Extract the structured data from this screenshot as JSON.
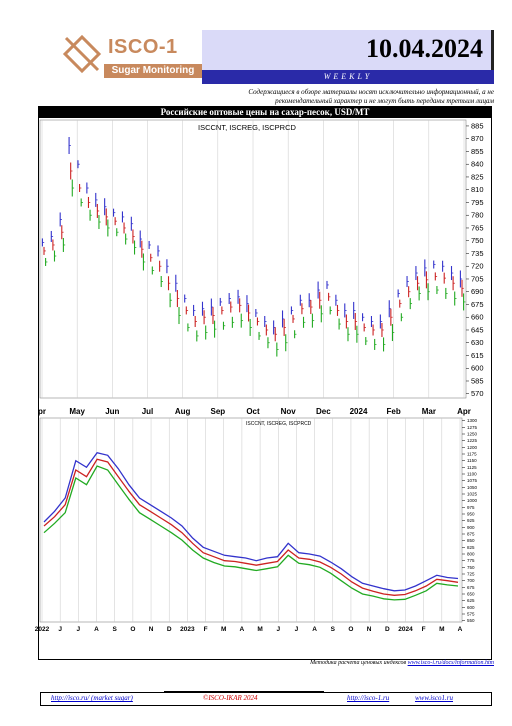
{
  "header": {
    "logo_title": "ISCO-1",
    "logo_subtitle": "Sugar Monitoring",
    "date": "10.04.2024",
    "weekly_label": "WEEKLY",
    "disclaimer": "Содержащиеся в обзоре материалы носят исключительно информационный, а не рекомендательный характер и не могут быть переданы третьим лицам"
  },
  "colors": {
    "date_bg": "#dadaf8",
    "weekly_bg": "#2a2aa8",
    "logo": "#c8895d",
    "cnt": "#3333cc",
    "reg": "#cc2222",
    "prcd": "#22aa22"
  },
  "chart_data": [
    {
      "type": "line",
      "title": "Российские оптовые цены на сахар-песок, USD/MT",
      "legend_text": "ISCCNT, ISCREG, ISCPRCD",
      "x_tick_labels": [
        "pr",
        "May",
        "Jun",
        "Jul",
        "Aug",
        "Sep",
        "Oct",
        "Nov",
        "Dec",
        "2024",
        "Feb",
        "Mar",
        "Apr"
      ],
      "y_tick_labels": [
        "885",
        "870",
        "855",
        "840",
        "825",
        "810",
        "795",
        "780",
        "765",
        "750",
        "735",
        "720",
        "705",
        "690",
        "675",
        "660",
        "645",
        "630",
        "615",
        "600",
        "585",
        "570"
      ],
      "ylim": [
        565,
        892
      ],
      "series": [
        {
          "name": "ISCCNT",
          "values": [
            748,
            755,
            775,
            862,
            840,
            812,
            798,
            790,
            783,
            778,
            770,
            752,
            745,
            738,
            720,
            700,
            682,
            668,
            670,
            672,
            678,
            682,
            684,
            676,
            665,
            655,
            648,
            658,
            668,
            680,
            680,
            692,
            698,
            680,
            668,
            668,
            660,
            655,
            655,
            670,
            688,
            702,
            712,
            718,
            722,
            720,
            712,
            705
          ]
        },
        {
          "name": "ISCREG",
          "values": [
            738,
            745,
            760,
            832,
            812,
            795,
            785,
            778,
            773,
            765,
            755,
            740,
            730,
            720,
            700,
            682,
            668,
            655,
            660,
            662,
            668,
            672,
            674,
            665,
            655,
            645,
            640,
            648,
            658,
            670,
            672,
            680,
            684,
            668,
            655,
            655,
            648,
            645,
            645,
            660,
            676,
            690,
            700,
            704,
            708,
            706,
            700,
            694
          ]
        },
        {
          "name": "ISCPRCD",
          "values": [
            725,
            732,
            745,
            812,
            795,
            780,
            772,
            765,
            760,
            752,
            742,
            725,
            715,
            702,
            680,
            662,
            648,
            638,
            642,
            646,
            650,
            654,
            656,
            648,
            638,
            630,
            622,
            630,
            640,
            654,
            656,
            664,
            668,
            652,
            640,
            640,
            632,
            628,
            628,
            642,
            660,
            676,
            688,
            690,
            692,
            688,
            682,
            678
          ]
        }
      ]
    },
    {
      "type": "line",
      "legend_text": "ISCCNT, ISCREG, ISCPRCD",
      "x_tick_labels": [
        "2022",
        "J",
        "J",
        "A",
        "S",
        "O",
        "N",
        "D",
        "2023",
        "F",
        "M",
        "A",
        "M",
        "J",
        "J",
        "A",
        "S",
        "O",
        "N",
        "D",
        "2024",
        "F",
        "M",
        "A"
      ],
      "y_tick_labels": [
        "1300",
        "1275",
        "1250",
        "1225",
        "1200",
        "1175",
        "1150",
        "1125",
        "1100",
        "1075",
        "1050",
        "1025",
        "1000",
        "975",
        "950",
        "925",
        "900",
        "875",
        "850",
        "825",
        "800",
        "775",
        "750",
        "725",
        "700",
        "675",
        "650",
        "625",
        "600",
        "575",
        "550"
      ],
      "ylim": [
        545,
        1310
      ],
      "series": [
        {
          "name": "ISCCNT",
          "values": [
            920,
            960,
            1010,
            1150,
            1125,
            1180,
            1170,
            1120,
            1060,
            1010,
            985,
            960,
            935,
            905,
            860,
            825,
            810,
            795,
            790,
            785,
            775,
            785,
            790,
            840,
            805,
            800,
            792,
            770,
            745,
            715,
            690,
            680,
            670,
            662,
            665,
            680,
            700,
            720,
            712,
            708
          ]
        },
        {
          "name": "ISCREG",
          "values": [
            905,
            940,
            985,
            1115,
            1090,
            1155,
            1145,
            1090,
            1035,
            985,
            960,
            935,
            910,
            880,
            840,
            805,
            790,
            775,
            772,
            765,
            758,
            765,
            772,
            815,
            785,
            780,
            770,
            750,
            725,
            695,
            672,
            660,
            650,
            645,
            648,
            662,
            680,
            705,
            700,
            694
          ]
        },
        {
          "name": "ISCPRCD",
          "values": [
            880,
            915,
            955,
            1085,
            1060,
            1130,
            1115,
            1060,
            1005,
            955,
            930,
            905,
            880,
            852,
            815,
            785,
            768,
            755,
            752,
            745,
            738,
            745,
            752,
            795,
            765,
            760,
            750,
            728,
            700,
            672,
            650,
            642,
            632,
            628,
            630,
            645,
            662,
            690,
            684,
            680
          ]
        }
      ]
    }
  ],
  "footnote": {
    "text": "Методика расчета ценовых индексов",
    "link": "www.isco-i.ru/docs/information.htm"
  },
  "footer": {
    "link_left": "http://isco.ru/ (market sugar)",
    "copyright": "©ISCO-IKAR 2024",
    "link_mid": "http://isco-1.ru",
    "link_right": "www.isco1.ru"
  }
}
